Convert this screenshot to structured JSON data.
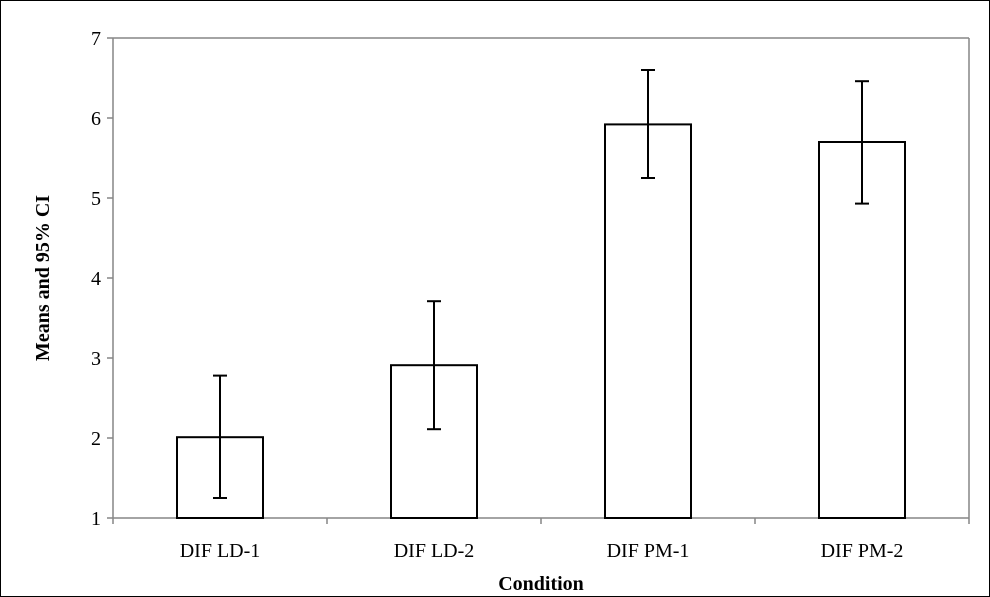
{
  "chart_data": {
    "type": "bar",
    "title": "",
    "xlabel": "Condition",
    "ylabel": "Means and 95% CI",
    "categories": [
      "DIF LD-1",
      "DIF LD-2",
      "DIF PM-1",
      "DIF PM-2"
    ],
    "values": [
      2.01,
      2.91,
      5.92,
      5.7
    ],
    "ci_lower": [
      1.25,
      2.11,
      5.25,
      4.93
    ],
    "ci_upper": [
      2.78,
      3.71,
      6.6,
      6.46
    ],
    "ylim": [
      1,
      7
    ],
    "yticks": [
      1,
      2,
      3,
      4,
      5,
      6,
      7
    ],
    "grid": false,
    "legend": "none",
    "colors": {
      "bar_fill": "#ffffff",
      "bar_stroke": "#000000",
      "axis": "#868686",
      "error_bar": "#000000"
    }
  }
}
